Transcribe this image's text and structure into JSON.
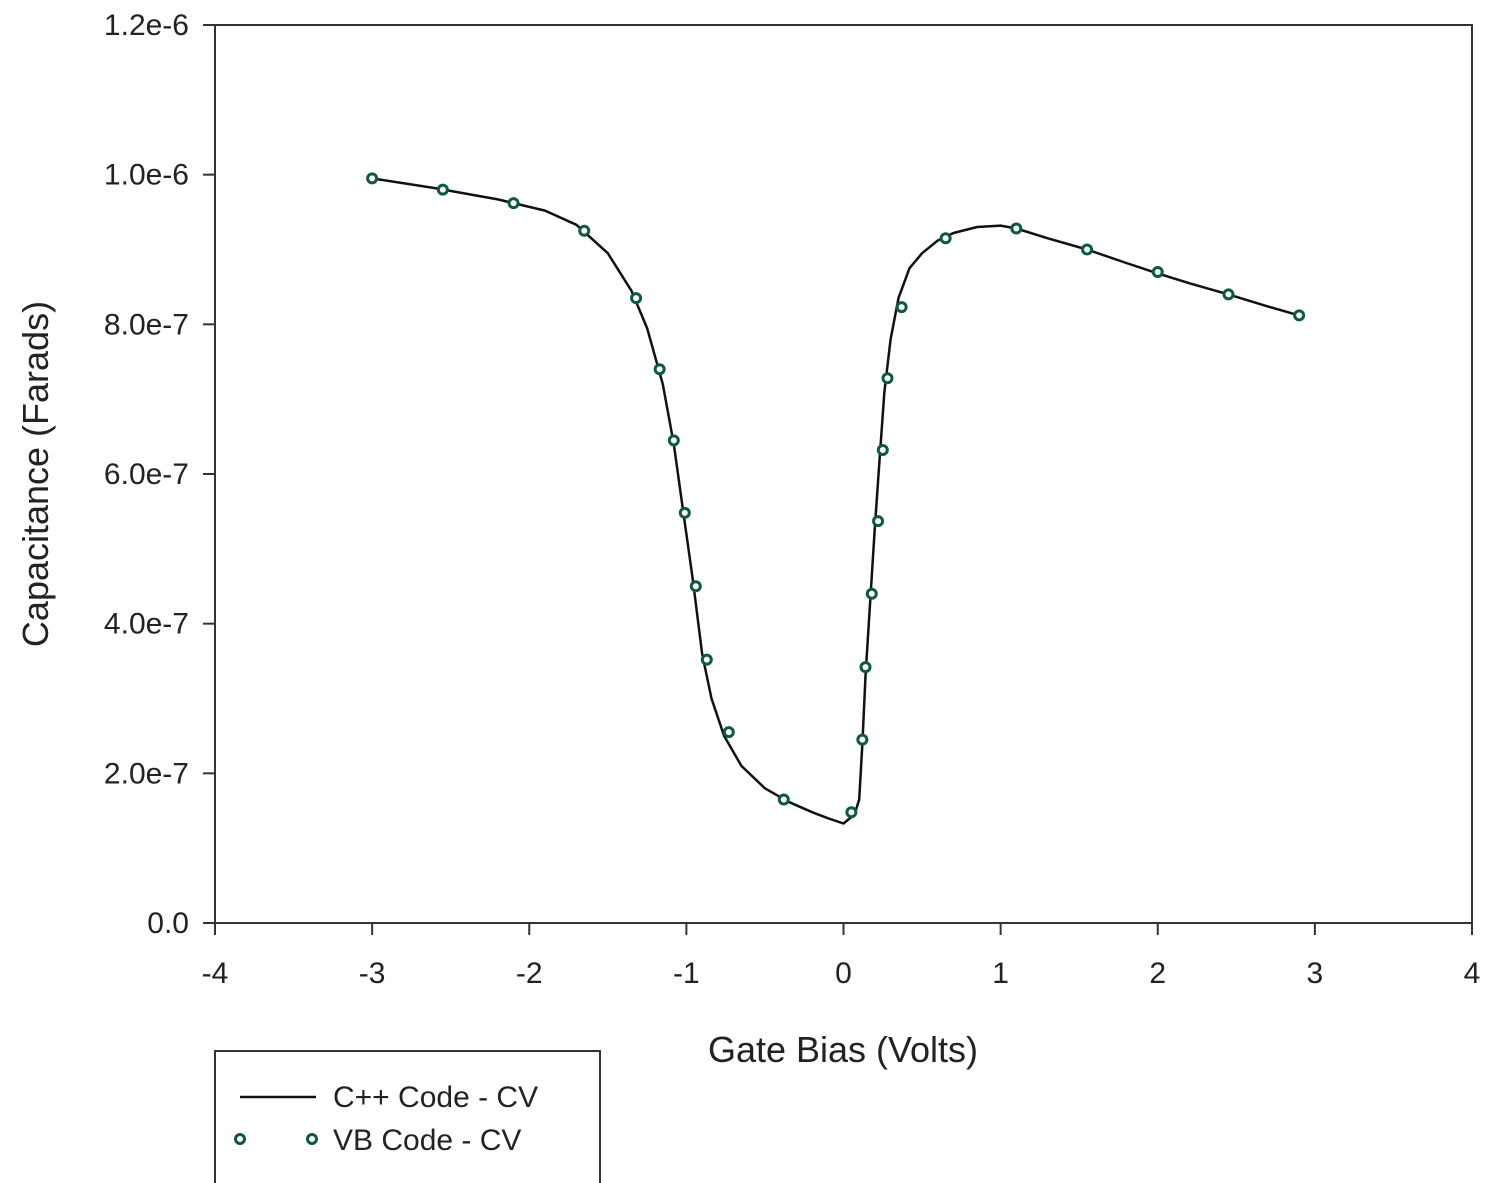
{
  "chart_data": {
    "type": "line",
    "xlabel": "Gate Bias (Volts)",
    "ylabel": "Capacitance (Farads)",
    "xlim": [
      -4,
      4
    ],
    "ylim": [
      0,
      1.2e-06
    ],
    "x_ticks": [
      -4,
      -3,
      -2,
      -1,
      0,
      1,
      2,
      3,
      4
    ],
    "x_tick_labels": [
      "-4",
      "-3",
      "-2",
      "-1",
      "0",
      "1",
      "2",
      "3",
      "4"
    ],
    "y_ticks": [
      0,
      2e-07,
      4e-07,
      6e-07,
      8e-07,
      1e-06,
      1.2e-06
    ],
    "y_tick_labels": [
      "0.0",
      "2.0e-7",
      "4.0e-7",
      "6.0e-7",
      "8.0e-7",
      "1.0e-6",
      "1.2e-6"
    ],
    "grid": false,
    "legend_position": "bottom-left, below plot",
    "series": [
      {
        "name": "C++ Code - CV",
        "style": "line",
        "color": "#111111",
        "x": [
          -3.0,
          -2.6,
          -2.2,
          -1.9,
          -1.7,
          -1.5,
          -1.35,
          -1.25,
          -1.15,
          -1.08,
          -1.02,
          -0.96,
          -0.9,
          -0.84,
          -0.76,
          -0.65,
          -0.5,
          -0.35,
          -0.2,
          -0.1,
          0.0,
          0.07,
          0.1,
          0.12,
          0.14,
          0.17,
          0.2,
          0.23,
          0.26,
          0.3,
          0.35,
          0.42,
          0.5,
          0.6,
          0.7,
          0.85,
          1.0,
          1.1,
          1.3,
          1.55,
          1.8,
          2.0,
          2.2,
          2.45,
          2.7,
          2.9
        ],
        "y": [
          9.95e-07,
          9.82e-07,
          9.67e-07,
          9.52e-07,
          9.33e-07,
          8.95e-07,
          8.45e-07,
          7.95e-07,
          7.2e-07,
          6.4e-07,
          5.5e-07,
          4.6e-07,
          3.6e-07,
          3e-07,
          2.5e-07,
          2.1e-07,
          1.8e-07,
          1.62e-07,
          1.48e-07,
          1.4e-07,
          1.33e-07,
          1.45e-07,
          1.65e-07,
          2.4e-07,
          3.3e-07,
          4.3e-07,
          5.3e-07,
          6.2e-07,
          7.1e-07,
          7.8e-07,
          8.35e-07,
          8.75e-07,
          8.95e-07,
          9.12e-07,
          9.22e-07,
          9.3e-07,
          9.32e-07,
          9.28e-07,
          9.15e-07,
          9e-07,
          8.82e-07,
          8.68e-07,
          8.55e-07,
          8.4e-07,
          8.24e-07,
          8.12e-07
        ]
      },
      {
        "name": "VB Code - CV",
        "style": "markers",
        "color": "#0f5a3a",
        "x": [
          -3.0,
          -2.55,
          -2.1,
          -1.65,
          -1.32,
          -1.17,
          -1.08,
          -1.01,
          -0.94,
          -0.87,
          -0.73,
          -0.38,
          0.05,
          0.12,
          0.14,
          0.18,
          0.22,
          0.25,
          0.28,
          0.37,
          0.65,
          1.1,
          1.55,
          2.0,
          2.45,
          2.9
        ],
        "y": [
          9.95e-07,
          9.8e-07,
          9.62e-07,
          9.25e-07,
          8.35e-07,
          7.4e-07,
          6.45e-07,
          5.48e-07,
          4.5e-07,
          3.52e-07,
          2.55e-07,
          1.65e-07,
          1.48e-07,
          2.45e-07,
          3.42e-07,
          4.4e-07,
          5.37e-07,
          6.32e-07,
          7.28e-07,
          8.23e-07,
          9.15e-07,
          9.28e-07,
          9e-07,
          8.7e-07,
          8.4e-07,
          8.12e-07
        ]
      }
    ]
  }
}
